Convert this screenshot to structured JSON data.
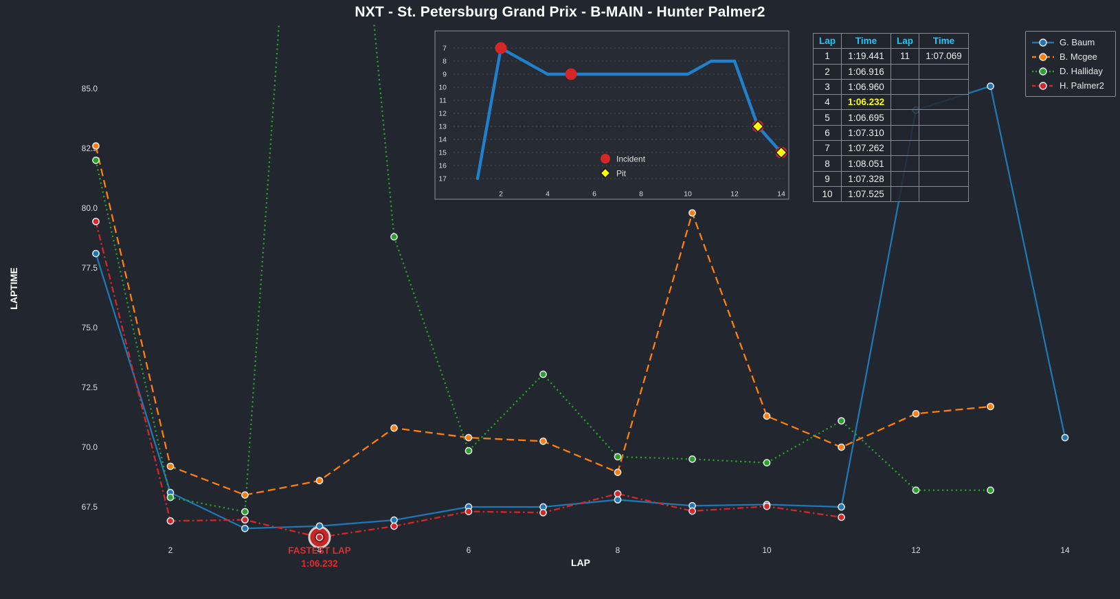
{
  "title": "NXT - St. Petersburg Grand Prix - B-MAIN - Hunter Palmer2",
  "axes": {
    "x_label": "LAP",
    "y_label": "LAPTIME",
    "x_ticks": [
      2,
      4,
      6,
      8,
      10,
      12,
      14
    ],
    "y_ticks": [
      "85.0",
      "82.5",
      "80.0",
      "77.5",
      "75.0",
      "72.5",
      "70.0",
      "67.5"
    ]
  },
  "chart_data": [
    {
      "type": "line",
      "title": "lap times by lap",
      "xlabel": "LAP",
      "ylabel": "LAPTIME",
      "xlim": [
        0.4,
        14.7
      ],
      "ylim": [
        65.7,
        87.6
      ],
      "grid": false,
      "legend_position": "top-right",
      "series": [
        {
          "name": "G. Baum",
          "color": "#1f77b4",
          "dash": "solid",
          "x": [
            1,
            2,
            3,
            4,
            5,
            6,
            7,
            8,
            9,
            10,
            11,
            12,
            13,
            14
          ],
          "y": [
            78.1,
            68.1,
            66.6,
            66.7,
            66.95,
            67.5,
            67.5,
            67.8,
            67.55,
            67.6,
            67.5,
            84.1,
            85.1,
            70.4
          ]
        },
        {
          "name": "B. Mcgee",
          "color": "#ff7f0e",
          "dash": "dashed",
          "x": [
            1,
            2,
            3,
            4,
            5,
            6,
            7,
            8,
            9,
            10,
            11,
            12,
            13
          ],
          "y": [
            82.6,
            69.2,
            68.0,
            68.6,
            70.8,
            70.4,
            70.25,
            68.95,
            79.8,
            71.3,
            70.0,
            71.4,
            71.7
          ]
        },
        {
          "name": "D. Halliday",
          "color": "#2ca02c",
          "dash": "dotted",
          "x": [
            1,
            2,
            3,
            4,
            5,
            6,
            7,
            8,
            9,
            10,
            11,
            12,
            13
          ],
          "y": [
            82.0,
            67.9,
            67.3,
            112.0,
            78.8,
            69.85,
            73.05,
            69.6,
            69.5,
            69.35,
            71.1,
            68.2,
            68.2
          ]
        },
        {
          "name": "H. Palmer2",
          "color": "#d62728",
          "dash": "dashdot",
          "x": [
            1,
            2,
            3,
            4,
            5,
            6,
            7,
            8,
            9,
            10,
            11
          ],
          "y": [
            79.441,
            66.916,
            66.96,
            66.232,
            66.695,
            67.31,
            67.262,
            68.051,
            67.328,
            67.525,
            67.069
          ]
        }
      ]
    },
    {
      "type": "line",
      "title": "race position by lap (inset)",
      "y_inverted": true,
      "line_color": "#2080cc",
      "x": [
        1,
        2,
        3,
        4,
        5,
        6,
        7,
        8,
        9,
        10,
        11,
        12,
        13,
        14
      ],
      "y": [
        17,
        7,
        8,
        9,
        9,
        9,
        9,
        9,
        9,
        9,
        8,
        8,
        13,
        15
      ],
      "x_ticks": [
        2,
        4,
        6,
        8,
        10,
        12,
        14
      ],
      "y_ticks": [
        7,
        8,
        9,
        10,
        11,
        12,
        13,
        14,
        15,
        16,
        17
      ],
      "incident_laps": [
        2,
        5,
        13,
        14
      ],
      "pit_laps": [
        13,
        14
      ],
      "legend": [
        {
          "label": "Incident",
          "marker": "circle",
          "color": "#d62728"
        },
        {
          "label": "Pit",
          "marker": "diamond",
          "color": "#ffff00"
        }
      ]
    }
  ],
  "lap_table": {
    "headers": [
      "Lap",
      "Time",
      "Lap",
      "Time"
    ],
    "header_color": "#1ec9ff",
    "rows": [
      [
        "1",
        "1:19.441",
        "11",
        "1:07.069"
      ],
      [
        "2",
        "1:06.916",
        "",
        ""
      ],
      [
        "3",
        "1:06.960",
        "",
        ""
      ],
      [
        "4",
        "1:06.232",
        "",
        ""
      ],
      [
        "5",
        "1:06.695",
        "",
        ""
      ],
      [
        "6",
        "1:07.310",
        "",
        ""
      ],
      [
        "7",
        "1:07.262",
        "",
        ""
      ],
      [
        "8",
        "1:08.051",
        "",
        ""
      ],
      [
        "9",
        "1:07.328",
        "",
        ""
      ],
      [
        "10",
        "1:07.525",
        "",
        ""
      ]
    ],
    "highlight_cell": {
      "row": 3,
      "col": 1,
      "color": "#ffff00"
    }
  },
  "legend": {
    "items": [
      {
        "label": "G. Baum",
        "color": "#1f77b4",
        "dash": "solid"
      },
      {
        "label": "B. Mcgee",
        "color": "#ff7f0e",
        "dash": "dashed"
      },
      {
        "label": "D. Halliday",
        "color": "#2ca02c",
        "dash": "dotted"
      },
      {
        "label": "H. Palmer2",
        "color": "#d62728",
        "dash": "dashdot"
      }
    ]
  },
  "annotation": {
    "line1": "FASTEST LAP",
    "line2": "1:06.232",
    "lap": 4,
    "value": 66.232,
    "color": "#d9302e"
  },
  "colors": {
    "background": "#22262e",
    "inset_background": "#272b34",
    "grid_dotted": "#454b55",
    "table_border": "#878c93",
    "header_cyan": "#1ec9ff",
    "highlight_yellow": "#ffff00",
    "marker_edge": "#e9ecef"
  }
}
